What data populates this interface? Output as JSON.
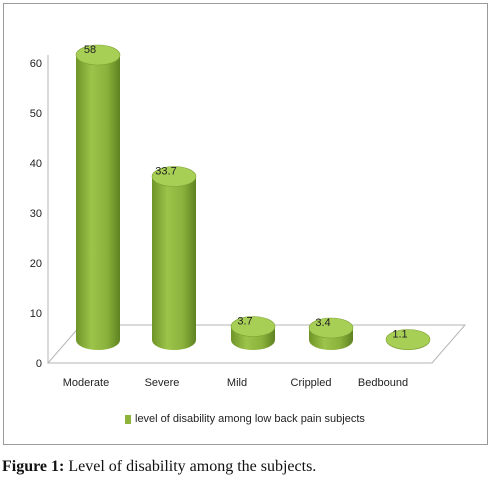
{
  "chart_data": {
    "type": "bar",
    "categories": [
      "Moderate",
      "Severe",
      "Mild",
      "Crippled",
      "Bedbound"
    ],
    "series": [
      {
        "name": "level of disability among low back pain subjects",
        "values": [
          58,
          33.7,
          3.7,
          3.4,
          1.1
        ]
      }
    ],
    "value_labels": [
      "58",
      "33.7",
      "3.7",
      "3.4",
      "1.1"
    ],
    "yticks": [
      "0",
      "10",
      "20",
      "30",
      "40",
      "50",
      "60"
    ],
    "ylim": [
      0,
      60
    ],
    "grid": false,
    "legend_position": "bottom",
    "bar_color": "#8db33a"
  },
  "caption": {
    "label": "Figure 1:",
    "text": " Level of disability among the subjects."
  }
}
